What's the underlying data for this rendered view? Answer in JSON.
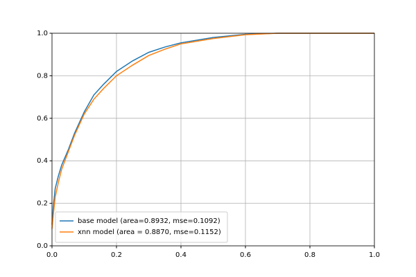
{
  "chart_data": {
    "type": "line",
    "x": [
      0,
      0.005,
      0.01,
      0.02,
      0.03,
      0.05,
      0.07,
      0.1,
      0.13,
      0.16,
      0.2,
      0.25,
      0.3,
      0.35,
      0.4,
      0.5,
      0.6,
      0.7,
      0.8,
      1.0
    ],
    "series": [
      {
        "name": "base model (area=0.8932, mse=0.1092)",
        "color": "#1f77b4",
        "values": [
          0.1,
          0.2,
          0.27,
          0.33,
          0.38,
          0.45,
          0.53,
          0.63,
          0.71,
          0.76,
          0.82,
          0.87,
          0.91,
          0.935,
          0.955,
          0.98,
          0.995,
          1.0,
          1.0,
          1.0
        ]
      },
      {
        "name": "xnn model (area = 0.8870, mse=0.1152)",
        "color": "#ff7f0e",
        "values": [
          0.08,
          0.16,
          0.23,
          0.3,
          0.36,
          0.44,
          0.52,
          0.62,
          0.69,
          0.74,
          0.8,
          0.85,
          0.895,
          0.925,
          0.95,
          0.975,
          0.993,
          1.0,
          1.0,
          1.0
        ]
      }
    ],
    "xlim": [
      0,
      1
    ],
    "ylim": [
      0,
      1
    ],
    "xticks": [
      {
        "value": 0,
        "label": "0.0"
      },
      0.2,
      0.4,
      0.6,
      0.8,
      {
        "value": 1,
        "label": "1.0"
      }
    ],
    "yticks": [
      {
        "value": 0,
        "label": "0.0"
      },
      0.2,
      0.4,
      0.6,
      0.8,
      {
        "value": 1,
        "label": "1.0"
      }
    ],
    "grid": true,
    "legend": "lower left"
  }
}
